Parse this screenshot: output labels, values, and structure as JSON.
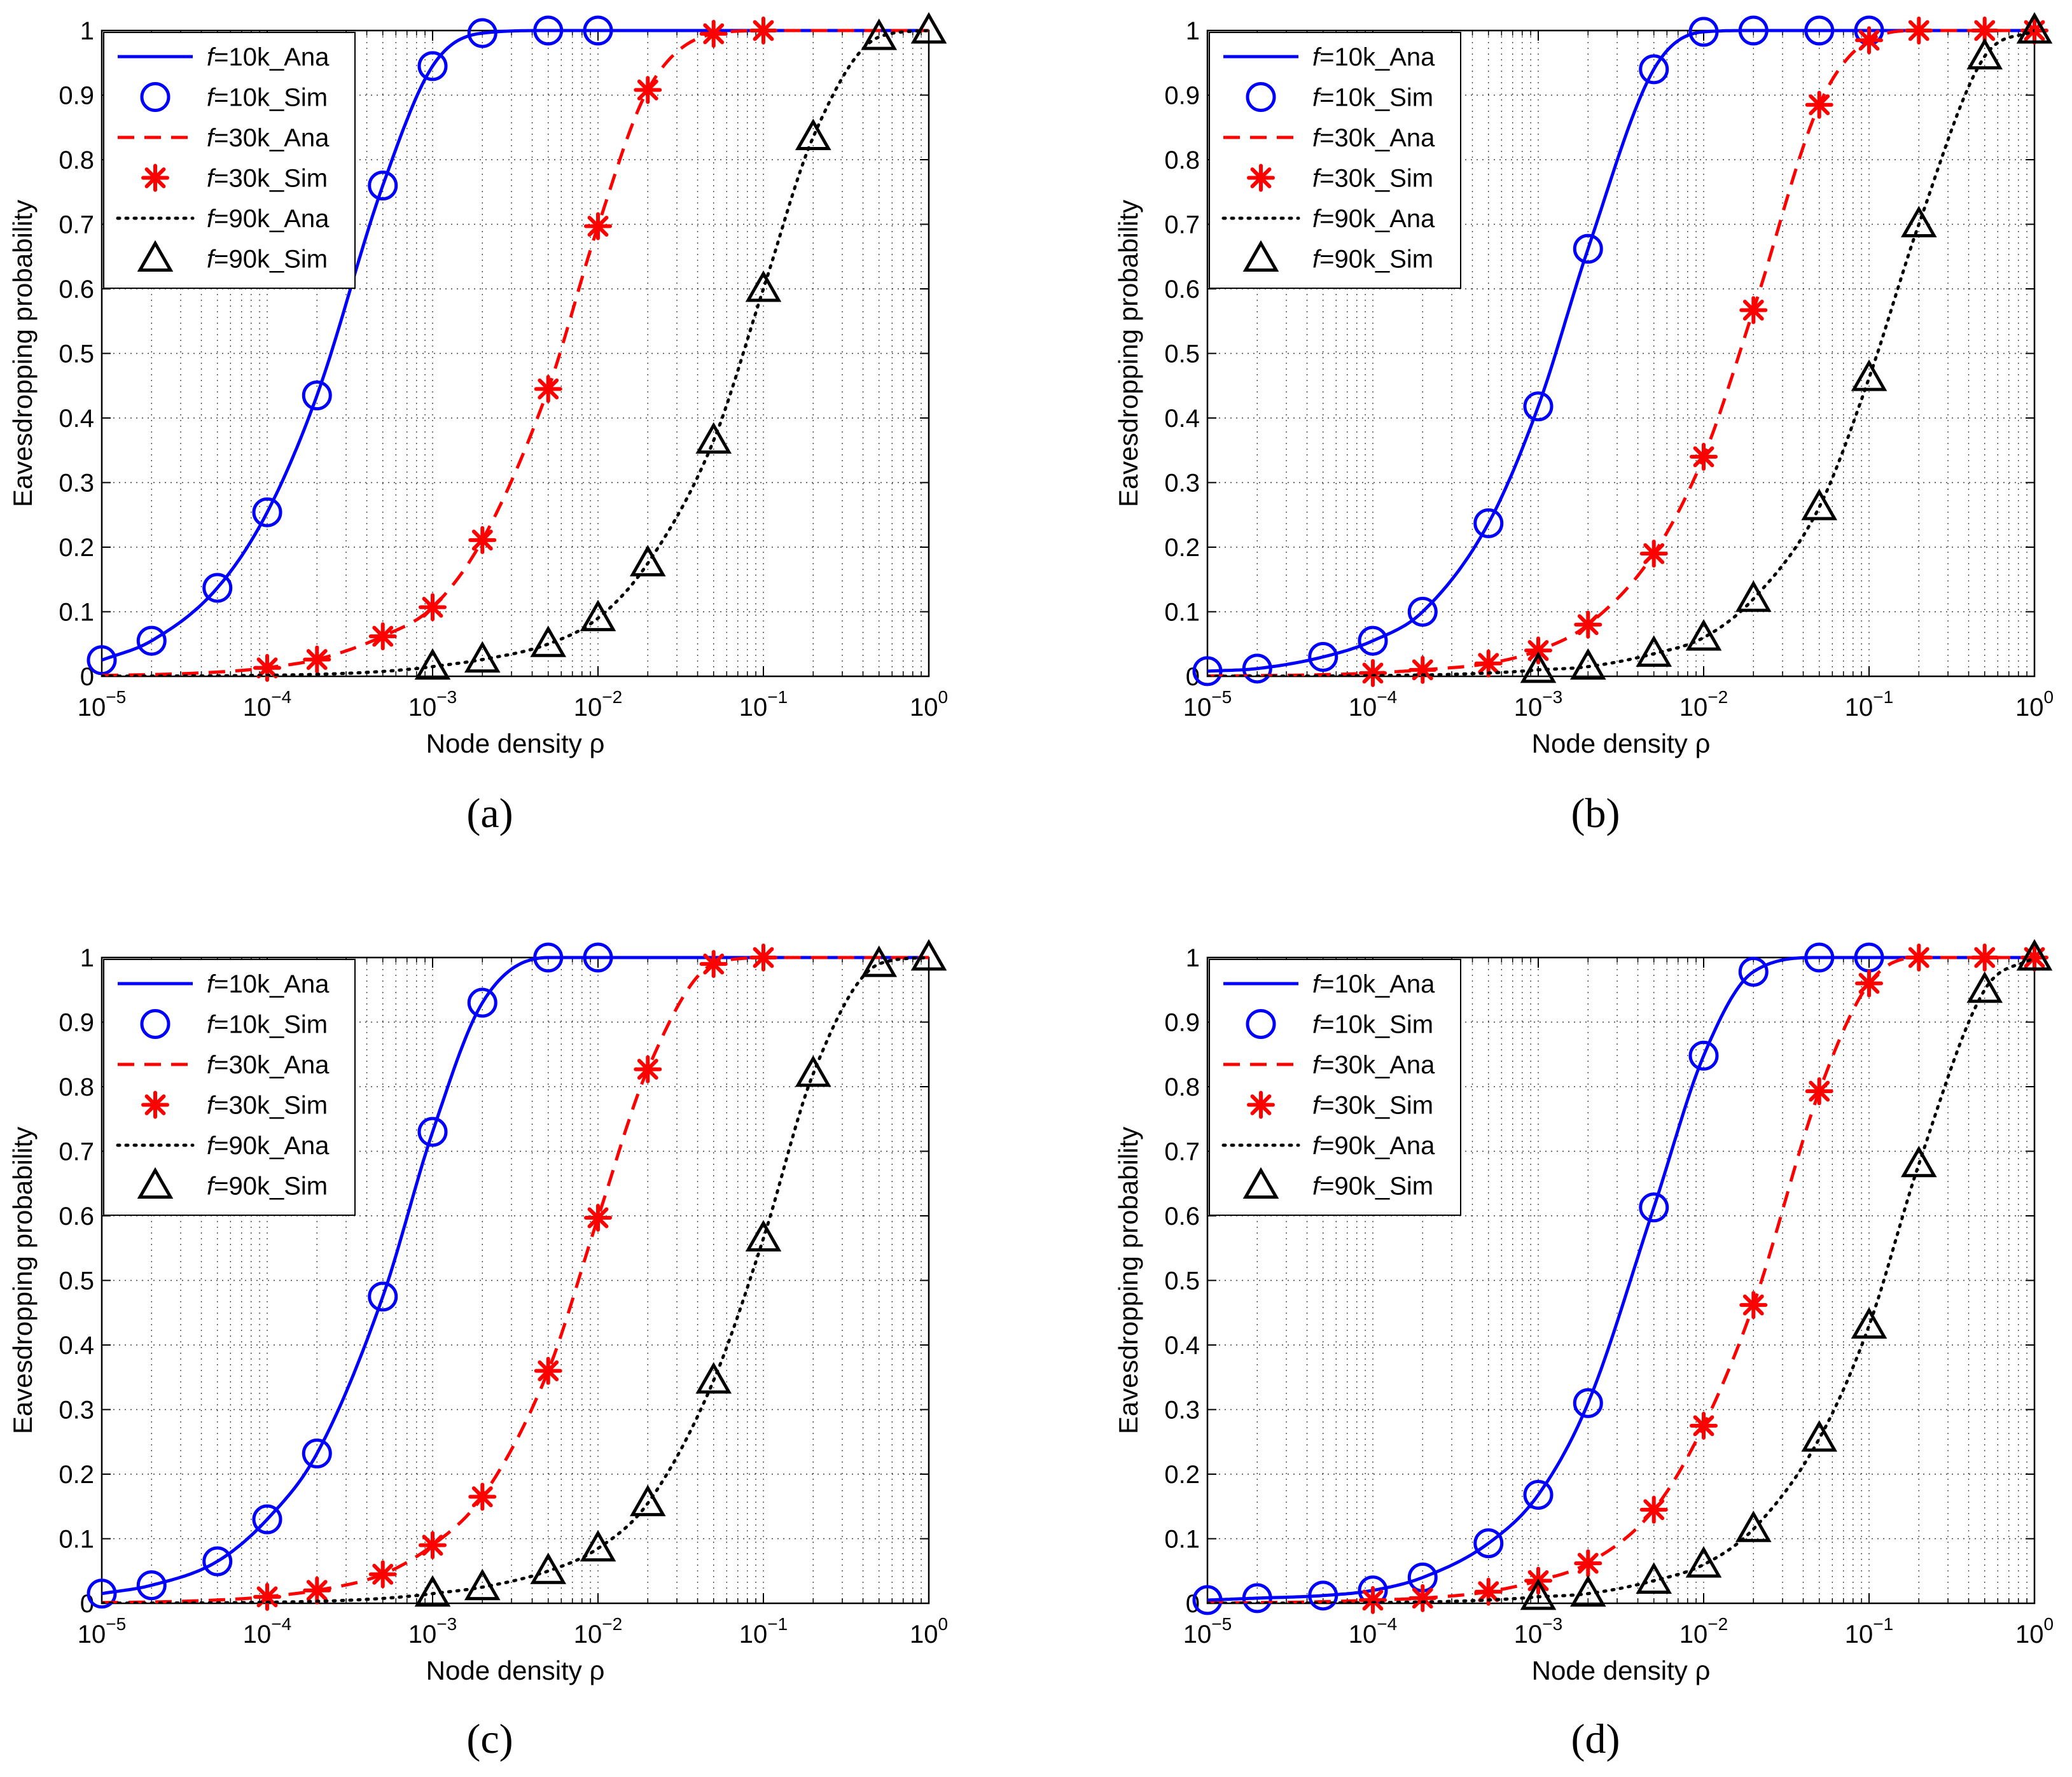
{
  "figure": {
    "y_axis_label": "Eavesdropping probability",
    "x_axis_label": "Node density ρ"
  },
  "colors": {
    "f10k": "#0000ff",
    "f30k": "#ff0000",
    "f90k": "#000000"
  },
  "chart_data": [
    {
      "type": "line",
      "caption": "(a)",
      "xscale": "log",
      "xlim": [
        1e-05,
        1
      ],
      "ylim": [
        0,
        1
      ],
      "grid": true,
      "legend_position": "top-left",
      "ylabel": "Eavesdropping probability",
      "xlabel": "Node density ρ",
      "yticks": [
        "0",
        "0.1",
        "0.2",
        "0.3",
        "0.4",
        "0.5",
        "0.6",
        "0.7",
        "0.8",
        "0.9",
        "1"
      ],
      "xticks": [
        {
          "base": "10",
          "exp": "−5"
        },
        {
          "base": "10",
          "exp": "−4"
        },
        {
          "base": "10",
          "exp": "−3"
        },
        {
          "base": "10",
          "exp": "−2"
        },
        {
          "base": "10",
          "exp": "−1"
        },
        {
          "base": "10",
          "exp": "0"
        }
      ],
      "legend": [
        {
          "f": "f",
          "label": "=10k_Ana"
        },
        {
          "f": "f",
          "label": "=10k_Sim"
        },
        {
          "f": "f",
          "label": "=30k_Ana"
        },
        {
          "f": "f",
          "label": "=30k_Sim"
        },
        {
          "f": "f",
          "label": "=90k_Ana"
        },
        {
          "f": "f",
          "label": "=90k_Sim"
        }
      ],
      "series": [
        {
          "name": "f=10k",
          "x": [
            1e-05,
            2e-05,
            5e-05,
            0.0001,
            0.0002,
            0.0005,
            0.001,
            0.002,
            0.005,
            0.01
          ],
          "y": [
            0.025,
            0.055,
            0.137,
            0.254,
            0.435,
            0.76,
            0.945,
            0.996,
            1.0,
            1.0
          ]
        },
        {
          "name": "f=30k",
          "x": [
            0.0001,
            0.0002,
            0.0005,
            0.001,
            0.002,
            0.005,
            0.01,
            0.02,
            0.05,
            0.1
          ],
          "y": [
            0.013,
            0.026,
            0.062,
            0.107,
            0.211,
            0.445,
            0.697,
            0.908,
            0.995,
            1.0
          ]
        },
        {
          "name": "f=90k",
          "x": [
            0.001,
            0.002,
            0.005,
            0.01,
            0.02,
            0.05,
            0.1,
            0.2,
            0.5,
            1
          ],
          "y": [
            0.015,
            0.026,
            0.05,
            0.09,
            0.175,
            0.365,
            0.6,
            0.835,
            0.99,
            1.0
          ]
        }
      ]
    },
    {
      "type": "line",
      "caption": "(b)",
      "xscale": "log",
      "xlim": [
        1e-05,
        1
      ],
      "ylim": [
        0,
        1
      ],
      "grid": true,
      "legend_position": "top-left",
      "ylabel": "Eavesdropping probability",
      "xlabel": "Node density ρ",
      "yticks": [
        "0",
        "0.1",
        "0.2",
        "0.3",
        "0.4",
        "0.5",
        "0.6",
        "0.7",
        "0.8",
        "0.9",
        "1"
      ],
      "xticks": [
        {
          "base": "10",
          "exp": "−5"
        },
        {
          "base": "10",
          "exp": "−4"
        },
        {
          "base": "10",
          "exp": "−3"
        },
        {
          "base": "10",
          "exp": "−2"
        },
        {
          "base": "10",
          "exp": "−1"
        },
        {
          "base": "10",
          "exp": "0"
        }
      ],
      "legend": [
        {
          "f": "f",
          "label": "=10k_Ana"
        },
        {
          "f": "f",
          "label": "=10k_Sim"
        },
        {
          "f": "f",
          "label": "=30k_Ana"
        },
        {
          "f": "f",
          "label": "=30k_Sim"
        },
        {
          "f": "f",
          "label": "=90k_Ana"
        },
        {
          "f": "f",
          "label": "=90k_Sim"
        }
      ],
      "series": [
        {
          "name": "f=10k",
          "x": [
            1e-05,
            2e-05,
            5e-05,
            0.0001,
            0.0002,
            0.0005,
            0.001,
            0.002,
            0.005,
            0.01,
            0.02,
            0.05,
            0.1
          ],
          "y": [
            0.008,
            0.012,
            0.03,
            0.055,
            0.1,
            0.237,
            0.418,
            0.662,
            0.94,
            0.998,
            1.0,
            1.0,
            1.0
          ]
        },
        {
          "name": "f=30k",
          "x": [
            0.0001,
            0.0002,
            0.0005,
            0.001,
            0.002,
            0.005,
            0.01,
            0.02,
            0.05,
            0.1,
            0.2,
            0.5,
            1
          ],
          "y": [
            0.005,
            0.01,
            0.02,
            0.04,
            0.08,
            0.19,
            0.34,
            0.567,
            0.885,
            0.985,
            1.0,
            1.0,
            1.0
          ]
        },
        {
          "name": "f=90k",
          "x": [
            0.001,
            0.002,
            0.005,
            0.01,
            0.02,
            0.05,
            0.1,
            0.2,
            0.5,
            1
          ],
          "y": [
            0.01,
            0.015,
            0.035,
            0.06,
            0.12,
            0.262,
            0.462,
            0.7,
            0.96,
            1.0
          ]
        }
      ]
    },
    {
      "type": "line",
      "caption": "(c)",
      "xscale": "log",
      "xlim": [
        1e-05,
        1
      ],
      "ylim": [
        0,
        1
      ],
      "grid": true,
      "legend_position": "top-left",
      "ylabel": "Eavesdropping probability",
      "xlabel": "Node density ρ",
      "yticks": [
        "0",
        "0.1",
        "0.2",
        "0.3",
        "0.4",
        "0.5",
        "0.6",
        "0.7",
        "0.8",
        "0.9",
        "1"
      ],
      "xticks": [
        {
          "base": "10",
          "exp": "−5"
        },
        {
          "base": "10",
          "exp": "−4"
        },
        {
          "base": "10",
          "exp": "−3"
        },
        {
          "base": "10",
          "exp": "−2"
        },
        {
          "base": "10",
          "exp": "−1"
        },
        {
          "base": "10",
          "exp": "0"
        }
      ],
      "legend": [
        {
          "f": "f",
          "label": "=10k_Ana"
        },
        {
          "f": "f",
          "label": "=10k_Sim"
        },
        {
          "f": "f",
          "label": "=30k_Ana"
        },
        {
          "f": "f",
          "label": "=30k_Sim"
        },
        {
          "f": "f",
          "label": "=90k_Ana"
        },
        {
          "f": "f",
          "label": "=90k_Sim"
        }
      ],
      "series": [
        {
          "name": "f=10k",
          "x": [
            1e-05,
            2e-05,
            5e-05,
            0.0001,
            0.0002,
            0.0005,
            0.001,
            0.002,
            0.005,
            0.01
          ],
          "y": [
            0.015,
            0.028,
            0.065,
            0.13,
            0.232,
            0.475,
            0.73,
            0.93,
            1.0,
            1.0
          ]
        },
        {
          "name": "f=30k",
          "x": [
            0.0001,
            0.0002,
            0.0005,
            0.001,
            0.002,
            0.005,
            0.01,
            0.02,
            0.05,
            0.1
          ],
          "y": [
            0.01,
            0.02,
            0.045,
            0.09,
            0.165,
            0.36,
            0.597,
            0.827,
            0.99,
            1.0
          ]
        },
        {
          "name": "f=90k",
          "x": [
            0.001,
            0.002,
            0.005,
            0.01,
            0.02,
            0.05,
            0.1,
            0.2,
            0.5,
            1
          ],
          "y": [
            0.015,
            0.025,
            0.05,
            0.085,
            0.155,
            0.345,
            0.565,
            0.82,
            0.99,
            1.0
          ]
        }
      ]
    },
    {
      "type": "line",
      "caption": "(d)",
      "xscale": "log",
      "xlim": [
        1e-05,
        1
      ],
      "ylim": [
        0,
        1
      ],
      "grid": true,
      "legend_position": "top-left",
      "ylabel": "Eavesdropping probability",
      "xlabel": "Node density ρ",
      "yticks": [
        "0",
        "0.1",
        "0.2",
        "0.3",
        "0.4",
        "0.5",
        "0.6",
        "0.7",
        "0.8",
        "0.9",
        "1"
      ],
      "xticks": [
        {
          "base": "10",
          "exp": "−5"
        },
        {
          "base": "10",
          "exp": "−4"
        },
        {
          "base": "10",
          "exp": "−3"
        },
        {
          "base": "10",
          "exp": "−2"
        },
        {
          "base": "10",
          "exp": "−1"
        },
        {
          "base": "10",
          "exp": "0"
        }
      ],
      "legend": [
        {
          "f": "f",
          "label": "=10k_Ana"
        },
        {
          "f": "f",
          "label": "=10k_Sim"
        },
        {
          "f": "f",
          "label": "=30k_Ana"
        },
        {
          "f": "f",
          "label": "=30k_Sim"
        },
        {
          "f": "f",
          "label": "=90k_Ana"
        },
        {
          "f": "f",
          "label": "=90k_Sim"
        }
      ],
      "series": [
        {
          "name": "f=10k",
          "x": [
            1e-05,
            2e-05,
            5e-05,
            0.0001,
            0.0002,
            0.0005,
            0.001,
            0.002,
            0.005,
            0.01,
            0.02,
            0.05,
            0.1
          ],
          "y": [
            0.005,
            0.008,
            0.012,
            0.02,
            0.04,
            0.093,
            0.168,
            0.31,
            0.613,
            0.848,
            0.978,
            1.0,
            1.0
          ]
        },
        {
          "name": "f=30k",
          "x": [
            0.0001,
            0.0002,
            0.0005,
            0.001,
            0.002,
            0.005,
            0.01,
            0.02,
            0.05,
            0.1,
            0.2,
            0.5,
            1
          ],
          "y": [
            0.005,
            0.008,
            0.018,
            0.035,
            0.062,
            0.145,
            0.275,
            0.462,
            0.793,
            0.96,
            1.0,
            1.0,
            1.0
          ]
        },
        {
          "name": "f=90k",
          "x": [
            0.001,
            0.002,
            0.005,
            0.01,
            0.02,
            0.05,
            0.1,
            0.2,
            0.5,
            1
          ],
          "y": [
            0.01,
            0.015,
            0.035,
            0.06,
            0.115,
            0.255,
            0.43,
            0.68,
            0.95,
            1.0
          ]
        }
      ]
    }
  ]
}
